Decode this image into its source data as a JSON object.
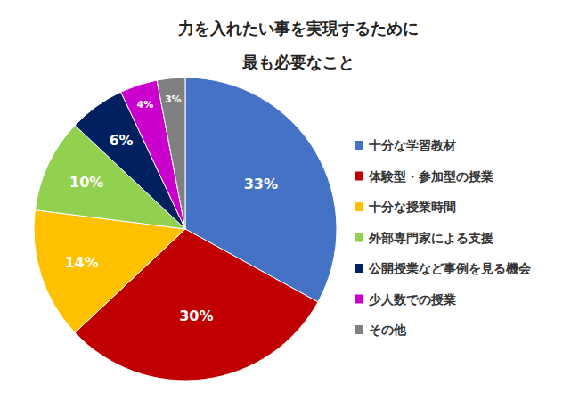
{
  "chart_data": {
    "type": "pie",
    "title": "力を入れたい事を実現するために\n最も必要なこと",
    "categories": [
      "十分な学習教材",
      "体験型・参加型の授業",
      "十分な授業時間",
      "外部専門家による支援",
      "公開授業など事例を見る機会",
      "少人数での授業",
      "その他"
    ],
    "values": [
      33,
      30,
      14,
      10,
      6,
      4,
      3
    ],
    "value_labels": [
      "33%",
      "30%",
      "14%",
      "10%",
      "6%",
      "4%",
      "3%"
    ],
    "colors": [
      "#4472c4",
      "#c00000",
      "#ffc000",
      "#92d050",
      "#002060",
      "#cc00cc",
      "#808080"
    ],
    "data_labels": true,
    "legend": "right"
  }
}
